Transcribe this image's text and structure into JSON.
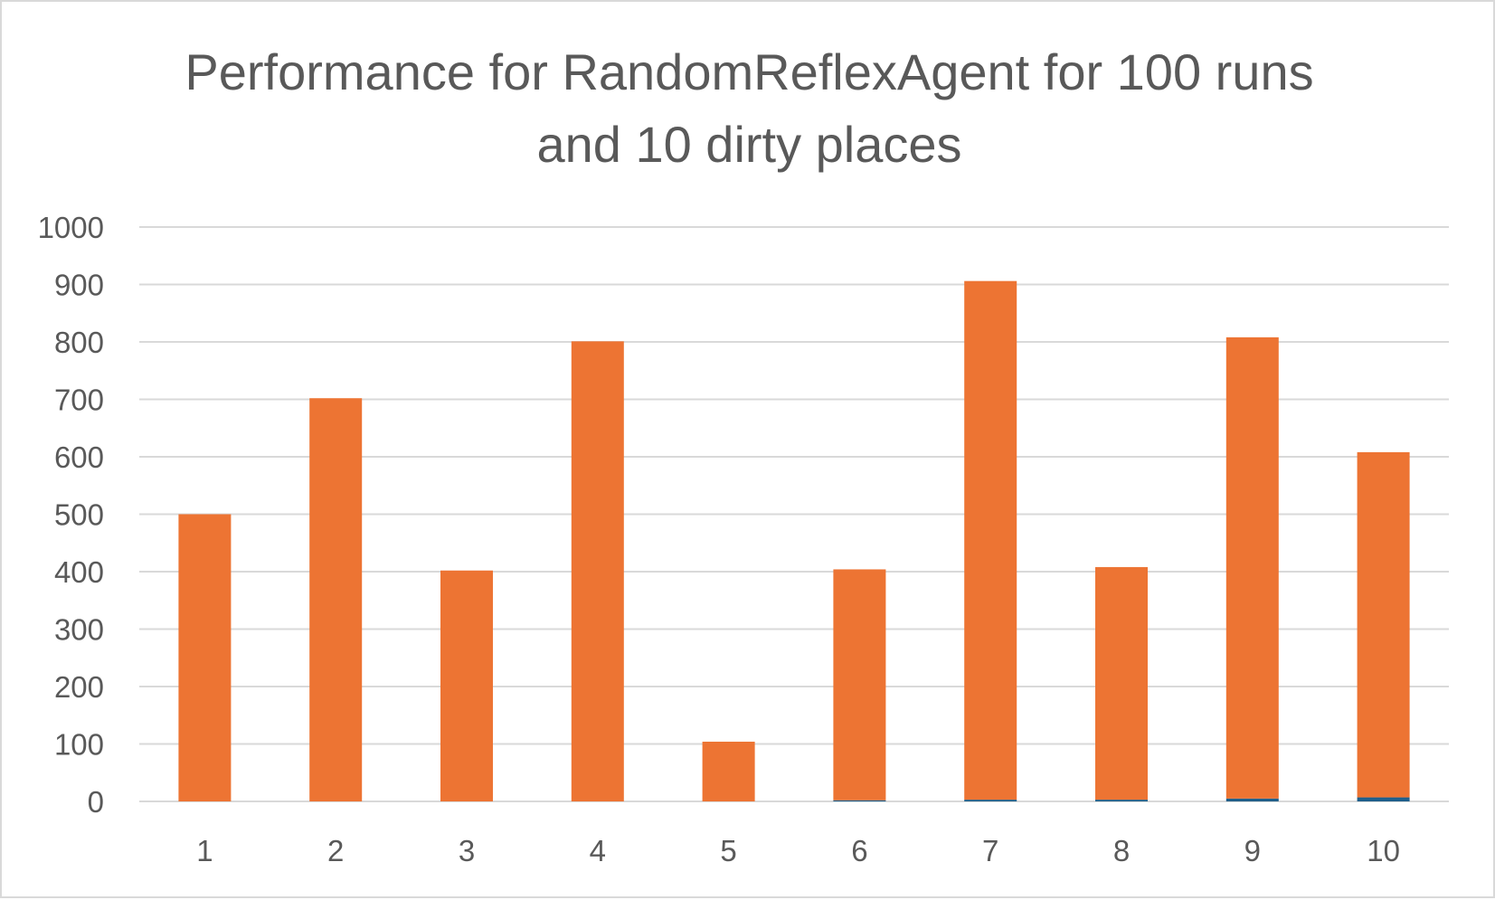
{
  "chart_data": {
    "type": "bar",
    "stacked": true,
    "title_lines": [
      "Performance for RandomReflexAgent for 100 runs",
      "and 10 dirty places"
    ],
    "categories": [
      "1",
      "2",
      "3",
      "4",
      "5",
      "6",
      "7",
      "8",
      "9",
      "10"
    ],
    "series": [
      {
        "values": [
          0,
          0,
          0,
          0,
          0,
          2,
          3,
          3,
          5,
          7
        ],
        "color": "#1f5f8b"
      },
      {
        "values": [
          500,
          702,
          402,
          801,
          104,
          402,
          903,
          405,
          803,
          601
        ],
        "color": "#ed7433"
      }
    ],
    "ylim": [
      0,
      1000
    ],
    "yticks": [
      0,
      100,
      200,
      300,
      400,
      500,
      600,
      700,
      800,
      900,
      1000
    ],
    "grid": true,
    "legend": "none",
    "xlabel": "",
    "ylabel": ""
  }
}
